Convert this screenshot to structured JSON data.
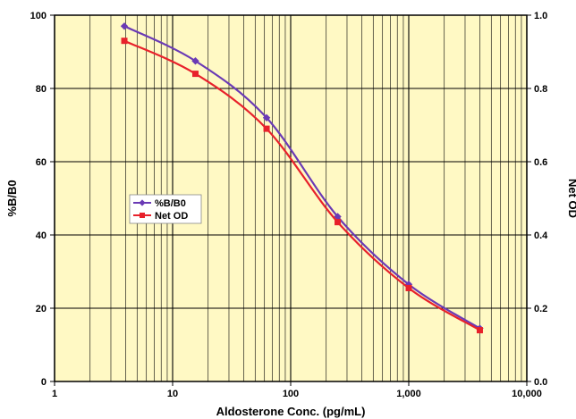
{
  "chart_data": {
    "type": "line",
    "xlabel": "Aldosterone Conc. (pg/mL)",
    "ylabel_left": "%B/B0",
    "ylabel_right": "Net OD",
    "x_scale": "log",
    "xlim": [
      1,
      10000
    ],
    "ylim_left": [
      0,
      100
    ],
    "ylim_right": [
      0,
      1.0
    ],
    "grid": true,
    "plot_background": "#FFF9C4",
    "x_tick_labels": [
      "1",
      "10",
      "100",
      "1,000",
      "10,000"
    ],
    "x_tick_values": [
      1,
      10,
      100,
      1000,
      10000
    ],
    "y_left_tick_labels": [
      "0",
      "20",
      "40",
      "60",
      "80",
      "100"
    ],
    "y_left_tick_values": [
      0,
      20,
      40,
      60,
      80,
      100
    ],
    "y_right_tick_labels": [
      "0.0",
      "0.2",
      "0.4",
      "0.6",
      "0.8",
      "1.0"
    ],
    "y_right_tick_values": [
      0,
      0.2,
      0.4,
      0.6,
      0.8,
      1.0
    ],
    "legend_position": "left-middle",
    "series": [
      {
        "name": "%B/B0",
        "axis": "left",
        "color": "#6A3AB5",
        "marker": "diamond",
        "x": [
          3.9,
          15.6,
          62.5,
          250,
          1000,
          4000
        ],
        "y": [
          97,
          87.5,
          72,
          45,
          26.5,
          14.5
        ]
      },
      {
        "name": "Net OD",
        "axis": "right",
        "color": "#E8212B",
        "marker": "square",
        "x": [
          3.9,
          15.6,
          62.5,
          250,
          1000,
          4000
        ],
        "y": [
          0.93,
          0.84,
          0.69,
          0.435,
          0.255,
          0.14
        ]
      }
    ]
  }
}
